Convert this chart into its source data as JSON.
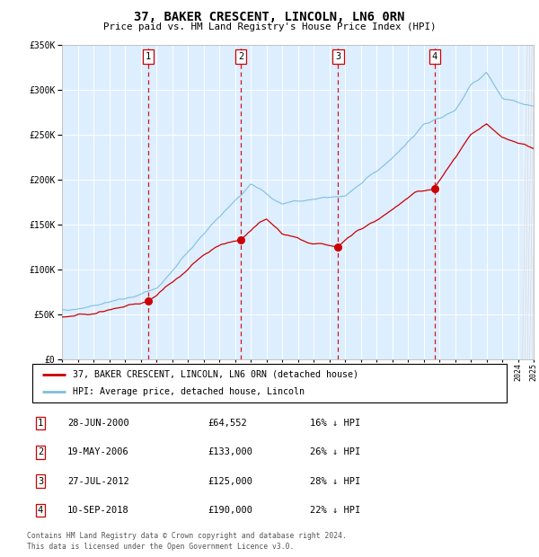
{
  "title": "37, BAKER CRESCENT, LINCOLN, LN6 0RN",
  "subtitle": "Price paid vs. HM Land Registry's House Price Index (HPI)",
  "legend_line1": "37, BAKER CRESCENT, LINCOLN, LN6 0RN (detached house)",
  "legend_line2": "HPI: Average price, detached house, Lincoln",
  "footer1": "Contains HM Land Registry data © Crown copyright and database right 2024.",
  "footer2": "This data is licensed under the Open Government Licence v3.0.",
  "hpi_color": "#7fbfdf",
  "price_color": "#cc0000",
  "vline_color": "#cc0000",
  "bg_color": "#ddeeff",
  "ylim": [
    0,
    350000
  ],
  "yticks": [
    0,
    50000,
    100000,
    150000,
    200000,
    250000,
    300000,
    350000
  ],
  "sale_dates": [
    2000.49,
    2006.38,
    2012.57,
    2018.69
  ],
  "sale_prices": [
    64552,
    133000,
    125000,
    190000
  ],
  "sale_labels": [
    "1",
    "2",
    "3",
    "4"
  ],
  "table_rows": [
    [
      "1",
      "28-JUN-2000",
      "£64,552",
      "16% ↓ HPI"
    ],
    [
      "2",
      "19-MAY-2006",
      "£133,000",
      "26% ↓ HPI"
    ],
    [
      "3",
      "27-JUL-2012",
      "£125,000",
      "28% ↓ HPI"
    ],
    [
      "4",
      "10-SEP-2018",
      "£190,000",
      "22% ↓ HPI"
    ]
  ],
  "hpi_keypoints_x": [
    1995,
    1997,
    1999,
    2001,
    2004,
    2007,
    2009,
    2011,
    2013,
    2016,
    2018,
    2020,
    2021,
    2022,
    2023,
    2024,
    2025
  ],
  "hpi_keypoints_y": [
    55000,
    60000,
    67000,
    80000,
    135000,
    188000,
    163000,
    168000,
    172000,
    213000,
    248000,
    265000,
    295000,
    310000,
    280000,
    275000,
    270000
  ],
  "price_keypoints_x": [
    1995,
    1997,
    1999,
    2000.49,
    2002,
    2004,
    2006.38,
    2008,
    2009,
    2010,
    2011,
    2012.57,
    2014,
    2016,
    2018.69,
    2020,
    2021,
    2022,
    2023,
    2024,
    2025
  ],
  "price_keypoints_y": [
    47000,
    50000,
    57000,
    64552,
    80000,
    110000,
    133000,
    148000,
    130000,
    128000,
    122000,
    125000,
    138000,
    158000,
    190000,
    210000,
    235000,
    245000,
    230000,
    225000,
    220000
  ]
}
